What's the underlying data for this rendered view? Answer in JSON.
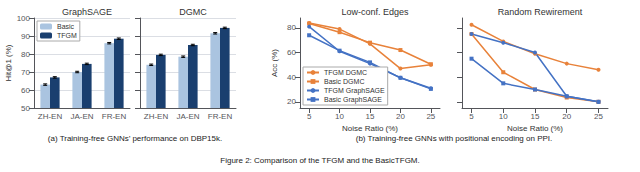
{
  "chart_data": [
    {
      "type": "bar",
      "title": "GraphSAGE",
      "categories": [
        "ZH-EN",
        "JA-EN",
        "FR-EN"
      ],
      "series": [
        {
          "name": "Basic",
          "color": "#aac4e0",
          "values": [
            63.0,
            70.0,
            86.0
          ],
          "yerr": 0.4
        },
        {
          "name": "TFGM",
          "color": "#1a3f6f",
          "values": [
            67.0,
            74.5,
            88.5
          ],
          "yerr": 0.4
        }
      ],
      "ylabel": "Hit@1 (%)",
      "ylim": [
        50,
        100
      ],
      "yticks": [
        50,
        60,
        70,
        80,
        90,
        100
      ],
      "grid": true,
      "legend": "upper left",
      "annotations": [
        "(a) Training-free GNNs’ performance on DBP15k.",
        "Figure 2: Comparison of the TFGM and the BasicTFGM."
      ]
    },
    {
      "type": "bar",
      "title": "DGMC",
      "categories": [
        "ZH-EN",
        "JA-EN",
        "FR-EN"
      ],
      "series": [
        {
          "name": "Basic",
          "color": "#aac4e0",
          "values": [
            74.0,
            78.5,
            91.5
          ],
          "yerr": 0.4
        },
        {
          "name": "TFGM",
          "color": "#1a3f6f",
          "values": [
            79.5,
            85.0,
            94.5
          ],
          "yerr": 0.4
        }
      ],
      "ylim": [
        50,
        100
      ],
      "yticks": [
        50,
        60,
        70,
        80,
        90,
        100
      ],
      "grid": true,
      "legend": false,
      "tick_labels": "x"
    },
    {
      "type": "line",
      "title": "Low-conf. Edges",
      "x": [
        5,
        10,
        15,
        20,
        25
      ],
      "series": [
        {
          "name": "TFGM DGMC",
          "color": "#e8823a",
          "marker": "circle",
          "values": [
            84.0,
            79.0,
            67.0,
            47.0,
            50.0
          ]
        },
        {
          "name": "Basic DGMC",
          "color": "#e8823a",
          "marker": "square",
          "values": [
            83.5,
            76.5,
            68.0,
            62.0,
            50.5
          ]
        },
        {
          "name": "TFGM GraphSAGE",
          "color": "#4472c4",
          "marker": "circle",
          "values": [
            81.0,
            61.0,
            51.0,
            39.5,
            31.0
          ]
        },
        {
          "name": "Basic GraphSAGE",
          "color": "#4472c4",
          "marker": "square",
          "values": [
            74.0,
            61.5,
            52.0,
            39.5,
            30.5
          ]
        }
      ],
      "xlabel": "Noise Ratio (%)",
      "ylabel": "Acc (%)",
      "xlim": [
        3.5,
        26.5
      ],
      "xticks": [
        5,
        10,
        15,
        20,
        25
      ],
      "ylim": [
        15,
        88
      ],
      "yticks": [
        20,
        40,
        60,
        80
      ],
      "grid": false,
      "legend": "lower left",
      "annotations": [
        "(b) Training-free GNNs with positional encoding on PPI."
      ]
    },
    {
      "type": "line",
      "title": "Random Rewirement",
      "x": [
        5,
        10,
        15,
        20,
        25
      ],
      "series": [
        {
          "name": "TFGM DGMC",
          "color": "#e8823a",
          "marker": "circle",
          "values": [
            82.5,
            69.0,
            59.0,
            51.0,
            46.0
          ]
        },
        {
          "name": "Basic DGMC",
          "color": "#e8823a",
          "marker": "square",
          "values": [
            75.0,
            44.0,
            30.0,
            23.5,
            20.0
          ]
        },
        {
          "name": "TFGM GraphSAGE",
          "color": "#4472c4",
          "marker": "circle",
          "values": [
            75.0,
            68.0,
            60.0,
            24.5,
            20.0
          ]
        },
        {
          "name": "Basic GraphSAGE",
          "color": "#4472c4",
          "marker": "square",
          "values": [
            55.0,
            35.0,
            30.0,
            24.5,
            20.0
          ]
        }
      ],
      "xlabel": "Noise Ratio (%)",
      "xlim": [
        3.5,
        26.5
      ],
      "xticks": [
        5,
        10,
        15,
        20,
        25
      ],
      "ylim": [
        15,
        88
      ],
      "yticks": [
        20,
        40,
        60,
        80
      ],
      "grid": false,
      "legend": false,
      "tick_labels": "x"
    }
  ]
}
